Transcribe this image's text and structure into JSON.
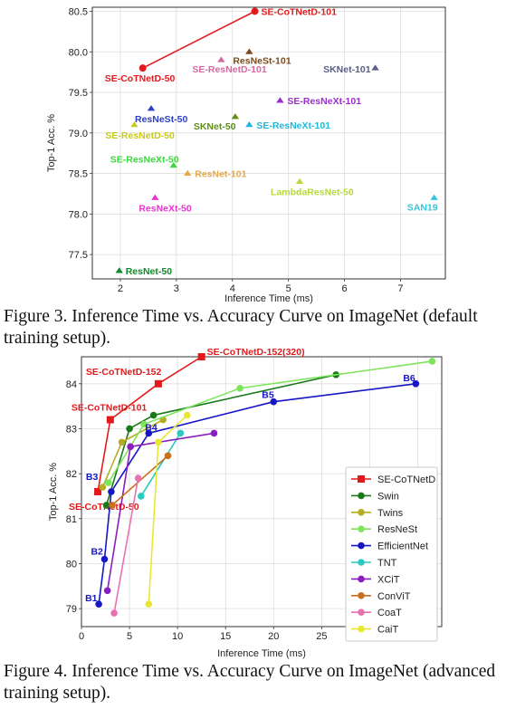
{
  "charts": [
    {
      "caption": "Figure 3. Inference Time vs.  Accuracy Curve on ImageNet (default training setup).",
      "chart_data": {
        "type": "scatter",
        "xlabel": "Inference Time (ms)",
        "ylabel": "Top-1 Acc. %",
        "xlim": [
          1.5,
          7.8
        ],
        "ylim": [
          77.2,
          80.55
        ],
        "xticks": [
          2,
          3,
          4,
          5,
          6,
          7
        ],
        "yticks": [
          77.5,
          78.0,
          78.5,
          79.0,
          79.5,
          80.0,
          80.5
        ],
        "grid": true,
        "series": [
          {
            "name": "SE-CoTNetD",
            "marker": "circle",
            "color": "#e31a1c",
            "line": true,
            "points": [
              {
                "label": "SE-CoTNetD-50",
                "x": 2.4,
                "y": 79.8
              },
              {
                "label": "SE-CoTNetD-101",
                "x": 4.4,
                "y": 80.5
              }
            ]
          },
          {
            "name": "",
            "marker": "triangle",
            "line": false,
            "points": [
              {
                "label": "ResNeSt-101",
                "x": 4.3,
                "y": 80.0,
                "color": "#7b4a1e"
              },
              {
                "label": "SE-ResNetD-101",
                "x": 3.8,
                "y": 79.9,
                "color": "#d36ba0"
              },
              {
                "label": "SKNet-101",
                "x": 6.55,
                "y": 79.8,
                "color": "#5a5f85"
              },
              {
                "label": "SE-ResNeXt-101",
                "x": 4.85,
                "y": 79.4,
                "color": "#9b30c8"
              },
              {
                "label": "ResNeSt-50",
                "x": 2.55,
                "y": 79.3,
                "color": "#2d3fc4"
              },
              {
                "label": "SKNet-50",
                "x": 4.05,
                "y": 79.2,
                "color": "#5e8f15"
              },
              {
                "label": "SE-ResNetD-50",
                "x": 2.25,
                "y": 79.1,
                "color": "#c8c81d"
              },
              {
                "label": "SE-ResNeXt-101",
                "x": 4.3,
                "y": 79.1,
                "color": "#1fb8d9"
              },
              {
                "label": "SE-ResNeXt-50",
                "x": 2.95,
                "y": 78.6,
                "color": "#3cd83c"
              },
              {
                "label": "ResNet-101",
                "x": 3.2,
                "y": 78.5,
                "color": "#e7a84a"
              },
              {
                "label": "LambdaResNet-50",
                "x": 5.2,
                "y": 78.4,
                "color": "#b9d83b"
              },
              {
                "label": "ResNeXt-50",
                "x": 2.62,
                "y": 78.2,
                "color": "#e832d1"
              },
              {
                "label": "SAN19",
                "x": 7.6,
                "y": 78.2,
                "color": "#33c7d9"
              },
              {
                "label": "ResNet-50",
                "x": 1.98,
                "y": 77.3,
                "color": "#118a2c"
              }
            ]
          }
        ]
      }
    },
    {
      "caption": "Figure 4. Inference Time vs.  Accuracy Curve on ImageNet (advanced training setup).",
      "chart_data": {
        "type": "line",
        "xlabel": "Inference Time (ms)",
        "ylabel": "Top-1 Acc. %",
        "xlim": [
          0,
          37.5
        ],
        "ylim": [
          78.6,
          84.6
        ],
        "xticks": [
          0,
          5,
          10,
          15,
          20,
          25,
          30,
          35
        ],
        "yticks": [
          79,
          80,
          81,
          82,
          83,
          84
        ],
        "grid": true,
        "legend": "right",
        "series": [
          {
            "name": "SE-CoTNetD",
            "color": "#e31a1c",
            "marker": "square",
            "x": [
              1.7,
              3.0,
              8.0,
              12.5
            ],
            "y": [
              81.6,
              83.2,
              84.0,
              84.6
            ],
            "point_labels": [
              "SE-CoTNetD-50",
              "SE-CoTNetD-101",
              "SE-CoTNetD-152",
              "SE-CoTNetD-152(320)"
            ]
          },
          {
            "name": "Swin",
            "color": "#1a7a1a",
            "marker": "circle",
            "x": [
              2.6,
              5.0,
              7.5,
              26.5
            ],
            "y": [
              81.3,
              83.0,
              83.3,
              84.2
            ]
          },
          {
            "name": "Twins",
            "color": "#b8ad22",
            "marker": "circle",
            "x": [
              2.2,
              4.2,
              8.5
            ],
            "y": [
              81.7,
              82.7,
              83.2
            ]
          },
          {
            "name": "ResNeSt",
            "color": "#7ee45c",
            "marker": "circle",
            "x": [
              2.8,
              6.5,
              16.5,
              36.5
            ],
            "y": [
              81.8,
              83.1,
              83.9,
              84.5
            ]
          },
          {
            "name": "EfficientNet",
            "color": "#1616c4",
            "marker": "circle",
            "x": [
              1.8,
              2.4,
              3.1,
              7.0,
              20.0,
              34.8
            ],
            "y": [
              79.1,
              80.1,
              81.6,
              82.9,
              83.6,
              84.0
            ],
            "point_labels": [
              "B1",
              "B2",
              "B3",
              "B4",
              "B5",
              "B6"
            ]
          },
          {
            "name": "TNT",
            "color": "#2bc9c0",
            "marker": "circle",
            "x": [
              6.2,
              10.3
            ],
            "y": [
              81.5,
              82.9
            ]
          },
          {
            "name": "XCiT",
            "color": "#8a1ec0",
            "marker": "circle",
            "x": [
              2.7,
              5.1,
              13.8
            ],
            "y": [
              79.4,
              82.6,
              82.9
            ]
          },
          {
            "name": "ConViT",
            "color": "#c8701d",
            "marker": "circle",
            "x": [
              3.2,
              9.0
            ],
            "y": [
              81.3,
              82.4
            ]
          },
          {
            "name": "CoaT",
            "color": "#e872b0",
            "marker": "circle",
            "x": [
              3.4,
              5.9
            ],
            "y": [
              78.9,
              81.9
            ]
          },
          {
            "name": "CaiT",
            "color": "#e8e832",
            "marker": "circle",
            "x": [
              7.0,
              8.0,
              11.0
            ],
            "y": [
              79.1,
              82.7,
              83.3
            ]
          }
        ]
      }
    }
  ]
}
